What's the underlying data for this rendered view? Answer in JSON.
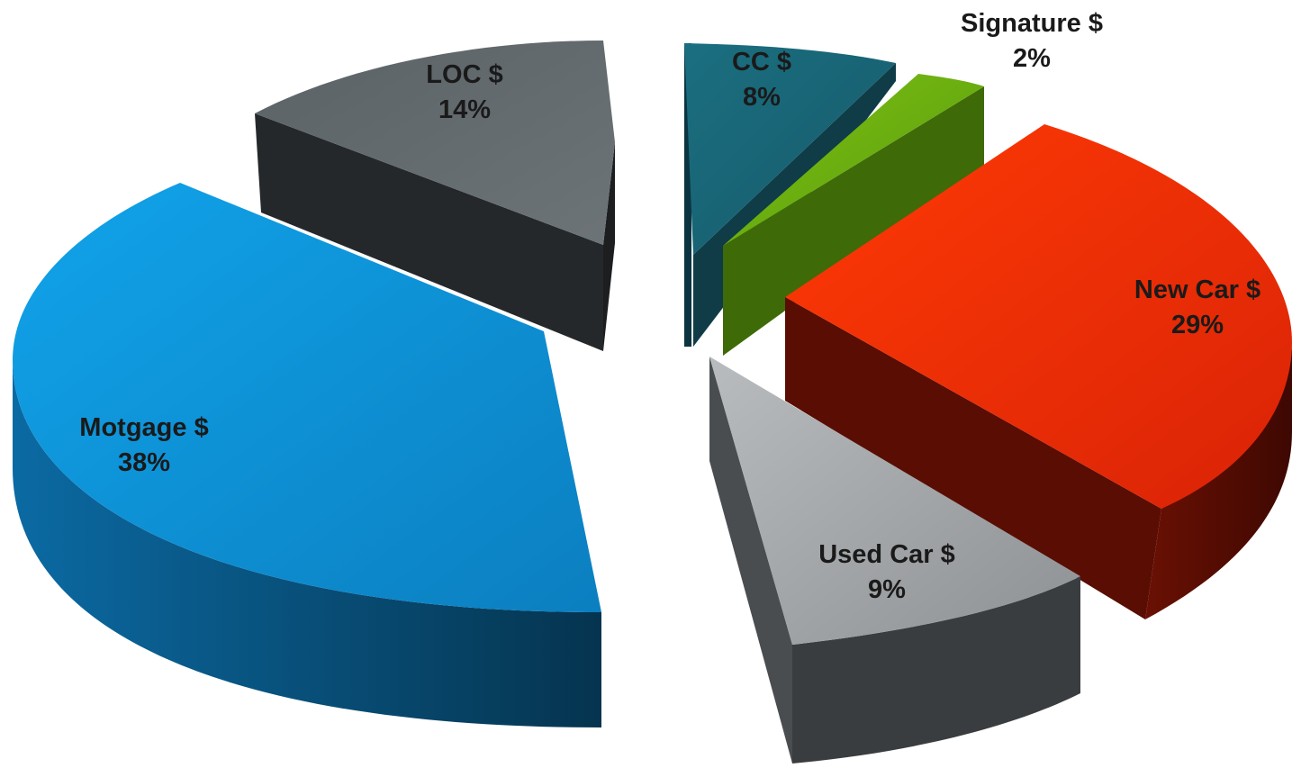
{
  "chart_data": {
    "type": "pie",
    "style": "3d-exploded",
    "title": "",
    "slices": [
      {
        "name": "CC $",
        "label": "8%",
        "value": 8,
        "color": "#1f6878",
        "side_color": "#0f3c47"
      },
      {
        "name": "Signature $",
        "label": "2%",
        "value": 2,
        "color": "#6aae10",
        "side_color": "#3e6a08"
      },
      {
        "name": "New Car $",
        "label": "29%",
        "value": 29,
        "color": "#f02e06",
        "side_color": "#5a0d02"
      },
      {
        "name": "Used Car $",
        "label": "9%",
        "value": 9,
        "color": "#a8abad",
        "side_color": "#3c3f41"
      },
      {
        "name": "Motgage $",
        "label": "38%",
        "value": 38,
        "color": "#1399dc",
        "side_color": "#0b5383"
      },
      {
        "name": "LOC $",
        "label": "14%",
        "value": 14,
        "color": "#636a6e",
        "side_color": "#232629"
      }
    ]
  }
}
